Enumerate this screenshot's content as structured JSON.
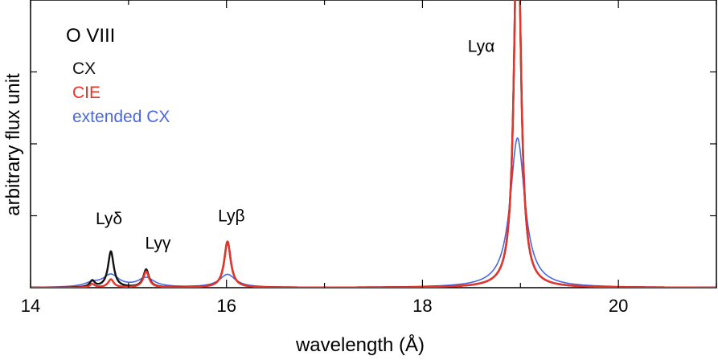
{
  "chart_data": {
    "type": "line",
    "title": "O VIII",
    "xlabel": "wavelength (Å)",
    "ylabel": "arbitrary flux unit",
    "xlim": [
      14,
      21
    ],
    "ylim": [
      0,
      100
    ],
    "xticks": [
      14,
      16,
      18,
      20
    ],
    "yticks_unlabeled": [
      25,
      50,
      75
    ],
    "legend_position": "top-left",
    "grid": false,
    "annotations": [
      {
        "text": "Lyα",
        "x": 18.6,
        "y": 82
      },
      {
        "text": "Lyβ",
        "x": 16.05,
        "y": 23
      },
      {
        "text": "Lyγ",
        "x": 15.3,
        "y": 13.5
      },
      {
        "text": "Lyδ",
        "x": 14.8,
        "y": 22
      }
    ],
    "lines": [
      {
        "center": 18.97,
        "label": "Lyα"
      },
      {
        "center": 16.01,
        "label": "Lyβ"
      },
      {
        "center": 15.18,
        "label": "Lyγ"
      },
      {
        "center": 14.82,
        "label": "Lyδ"
      },
      {
        "center": 14.63,
        "label": ""
      }
    ],
    "series": [
      {
        "name": "CX",
        "color": "#111111",
        "peaks": [
          {
            "center": 18.97,
            "height": 140,
            "width": 0.04
          },
          {
            "center": 16.01,
            "height": 16,
            "width": 0.04
          },
          {
            "center": 15.18,
            "height": 6.2,
            "width": 0.035
          },
          {
            "center": 14.82,
            "height": 12.5,
            "width": 0.035
          },
          {
            "center": 14.63,
            "height": 2.2,
            "width": 0.03
          }
        ]
      },
      {
        "name": "CIE",
        "color": "#e8332a",
        "peaks": [
          {
            "center": 18.97,
            "height": 140,
            "width": 0.04
          },
          {
            "center": 16.01,
            "height": 16,
            "width": 0.04
          },
          {
            "center": 15.18,
            "height": 5.6,
            "width": 0.035
          },
          {
            "center": 14.82,
            "height": 2.8,
            "width": 0.035
          },
          {
            "center": 14.63,
            "height": 1.2,
            "width": 0.03
          }
        ]
      },
      {
        "name": "extended CX",
        "color": "#4a68e0",
        "peaks": [
          {
            "center": 18.97,
            "height": 52,
            "width": 0.09
          },
          {
            "center": 16.01,
            "height": 4.5,
            "width": 0.1
          },
          {
            "center": 15.18,
            "height": 3.2,
            "width": 0.1
          },
          {
            "center": 14.82,
            "height": 4.2,
            "width": 0.1
          },
          {
            "center": 14.63,
            "height": 1.3,
            "width": 0.1
          }
        ]
      }
    ]
  }
}
